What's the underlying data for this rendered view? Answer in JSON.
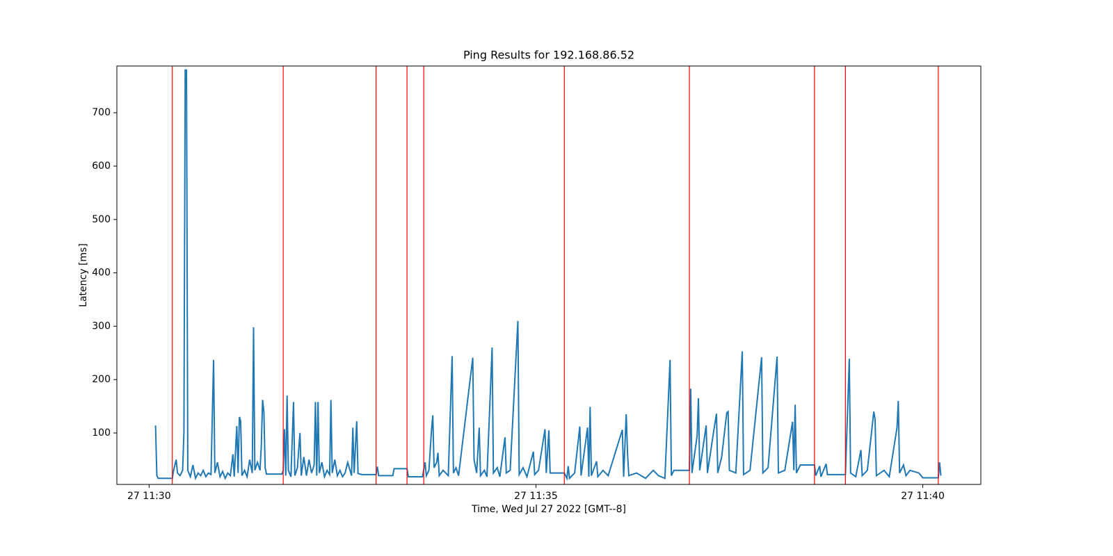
{
  "chart_data": {
    "type": "line",
    "title": "Ping Results for 192.168.86.52",
    "xlabel": "Time, Wed Jul 27 2022 [GMT--8]",
    "ylabel": "Latency [ms]",
    "xlim": [
      "11:29:35",
      "11:40:45"
    ],
    "xticks": [
      {
        "value": "11:30:00",
        "label": "27 11:30"
      },
      {
        "value": "11:35:00",
        "label": "27 11:35"
      },
      {
        "value": "11:40:00",
        "label": "27 11:40"
      }
    ],
    "ylim": [
      3.6,
      787.5
    ],
    "yticks": [
      100,
      200,
      300,
      400,
      500,
      600,
      700
    ],
    "grid": false,
    "vlines": {
      "color": "#ff0000",
      "x": [
        "11:30:18",
        "11:31:44",
        "11:32:56",
        "11:33:20",
        "11:33:33",
        "11:35:22",
        "11:36:59",
        "11:38:36",
        "11:39:00",
        "11:40:12"
      ]
    },
    "x": [
      "11:30:05",
      "11:30:06",
      "11:30:07",
      "11:30:18",
      "11:30:19",
      "11:30:21",
      "11:30:22",
      "11:30:24",
      "11:30:26",
      "11:30:27",
      "11:30:28",
      "11:30:29",
      "11:30:30",
      "11:30:32",
      "11:30:34",
      "11:30:36",
      "11:30:38",
      "11:30:40",
      "11:30:42",
      "11:30:44",
      "11:30:46",
      "11:30:48",
      "11:30:50",
      "11:30:51",
      "11:30:53",
      "11:30:55",
      "11:30:57",
      "11:30:59",
      "11:31:01",
      "11:31:03",
      "11:31:05",
      "11:31:06",
      "11:31:08",
      "11:31:09",
      "11:31:10",
      "11:31:11",
      "11:31:12",
      "11:31:14",
      "11:31:16",
      "11:31:18",
      "11:31:20",
      "11:31:21",
      "11:31:22",
      "11:31:24",
      "11:31:26",
      "11:31:27",
      "11:31:28",
      "11:31:29",
      "11:31:30",
      "11:31:31",
      "11:31:43",
      "11:31:44",
      "11:31:45",
      "11:31:46",
      "11:31:47",
      "11:31:48",
      "11:31:50",
      "11:31:52",
      "11:31:53",
      "11:31:55",
      "11:31:57",
      "11:31:58",
      "11:32:00",
      "11:32:02",
      "11:32:04",
      "11:32:06",
      "11:32:08",
      "11:32:09",
      "11:32:10",
      "11:32:11",
      "11:32:12",
      "11:32:14",
      "11:32:16",
      "11:32:18",
      "11:32:20",
      "11:32:21",
      "11:32:22",
      "11:32:24",
      "11:32:26",
      "11:32:28",
      "11:32:30",
      "11:32:32",
      "11:32:34",
      "11:32:37",
      "11:32:38",
      "11:32:39",
      "11:32:41",
      "11:32:42",
      "11:32:45",
      "11:32:56",
      "11:32:57",
      "11:32:58",
      "11:33:09",
      "11:33:10",
      "11:33:20",
      "11:33:21",
      "11:33:32",
      "11:33:34",
      "11:33:35",
      "11:33:37",
      "11:33:39",
      "11:33:40",
      "11:33:41",
      "11:33:43",
      "11:33:44",
      "11:33:45",
      "11:33:48",
      "11:33:52",
      "11:33:55",
      "11:33:56",
      "11:33:58",
      "11:34:00",
      "11:34:11",
      "11:34:12",
      "11:34:14",
      "11:34:16",
      "11:34:17",
      "11:34:20",
      "11:34:22",
      "11:34:26",
      "11:34:27",
      "11:34:30",
      "11:34:32",
      "11:34:36",
      "11:34:37",
      "11:34:40",
      "11:34:46",
      "11:34:47",
      "11:34:50",
      "11:34:53",
      "11:34:58",
      "11:34:59",
      "11:35:02",
      "11:35:07",
      "11:35:08",
      "11:35:10",
      "11:35:11",
      "11:35:22",
      "11:35:24",
      "11:35:25",
      "11:35:26",
      "11:35:30",
      "11:35:34",
      "11:35:35",
      "11:35:40",
      "11:35:41",
      "11:35:42",
      "11:35:43",
      "11:35:47",
      "11:35:48",
      "11:35:52",
      "11:35:56",
      "11:36:07",
      "11:36:08",
      "11:36:10",
      "11:36:11",
      "11:36:12",
      "11:36:18",
      "11:36:25",
      "11:36:31",
      "11:36:35",
      "11:36:40",
      "11:36:44",
      "11:36:45",
      "11:36:47",
      "11:36:59",
      "11:37:00",
      "11:37:01",
      "11:37:05",
      "11:37:06",
      "11:37:07",
      "11:37:12",
      "11:37:13",
      "11:37:18",
      "11:37:20",
      "11:37:21",
      "11:37:24",
      "11:37:28",
      "11:37:29",
      "11:37:30",
      "11:37:35",
      "11:37:40",
      "11:37:41",
      "11:37:46",
      "11:37:55",
      "11:37:56",
      "11:38:00",
      "11:38:07",
      "11:38:08",
      "11:38:13",
      "11:38:19",
      "11:38:20",
      "11:38:21",
      "11:38:22",
      "11:38:25",
      "11:38:36",
      "11:38:37",
      "11:38:40",
      "11:38:41",
      "11:38:45",
      "11:38:46",
      "11:39:00",
      "11:39:03",
      "11:39:04",
      "11:39:08",
      "11:39:12",
      "11:39:13",
      "11:39:17",
      "11:39:22",
      "11:39:23",
      "11:39:24",
      "11:39:30",
      "11:39:34",
      "11:39:40",
      "11:39:41",
      "11:39:42",
      "11:39:45",
      "11:39:47",
      "11:39:50",
      "11:39:57",
      "11:40:00",
      "11:40:12",
      "11:40:13",
      "11:40:14"
    ],
    "series": [
      {
        "color": "#1f77b4",
        "values": [
          114,
          20,
          15,
          15,
          30,
          50,
          25,
          20,
          30,
          100,
          780,
          780,
          30,
          18,
          40,
          15,
          25,
          20,
          30,
          18,
          25,
          22,
          237,
          25,
          45,
          18,
          28,
          15,
          25,
          20,
          60,
          18,
          113,
          25,
          130,
          122,
          20,
          30,
          18,
          50,
          25,
          298,
          30,
          45,
          30,
          75,
          162,
          140,
          35,
          23,
          23,
          30,
          107,
          20,
          170,
          30,
          18,
          158,
          20,
          35,
          100,
          20,
          55,
          20,
          50,
          25,
          40,
          158,
          20,
          158,
          25,
          45,
          18,
          30,
          22,
          162,
          25,
          50,
          20,
          30,
          18,
          25,
          45,
          20,
          110,
          25,
          122,
          24,
          22,
          22,
          37,
          20,
          20,
          33,
          33,
          18,
          18,
          45,
          20,
          30,
          105,
          133,
          35,
          45,
          63,
          20,
          30,
          20,
          244,
          25,
          35,
          20,
          241,
          50,
          25,
          110,
          20,
          30,
          18,
          260,
          25,
          35,
          18,
          92,
          25,
          30,
          310,
          22,
          35,
          18,
          65,
          22,
          30,
          107,
          25,
          105,
          25,
          25,
          15,
          38,
          15,
          25,
          112,
          20,
          110,
          18,
          149,
          20,
          47,
          18,
          30,
          20,
          106,
          18,
          135,
          63,
          20,
          25,
          15,
          30,
          20,
          15,
          237,
          20,
          30,
          30,
          183,
          25,
          95,
          165,
          30,
          114,
          25,
          106,
          136,
          25,
          55,
          138,
          140,
          30,
          25,
          253,
          22,
          30,
          242,
          25,
          35,
          243,
          25,
          30,
          121,
          30,
          153,
          25,
          40,
          40,
          20,
          38,
          18,
          42,
          22,
          22,
          239,
          25,
          18,
          68,
          20,
          30,
          140,
          125,
          20,
          30,
          18,
          110,
          160,
          25,
          40,
          20,
          30,
          25,
          16,
          16,
          45,
          20
        ]
      }
    ]
  }
}
